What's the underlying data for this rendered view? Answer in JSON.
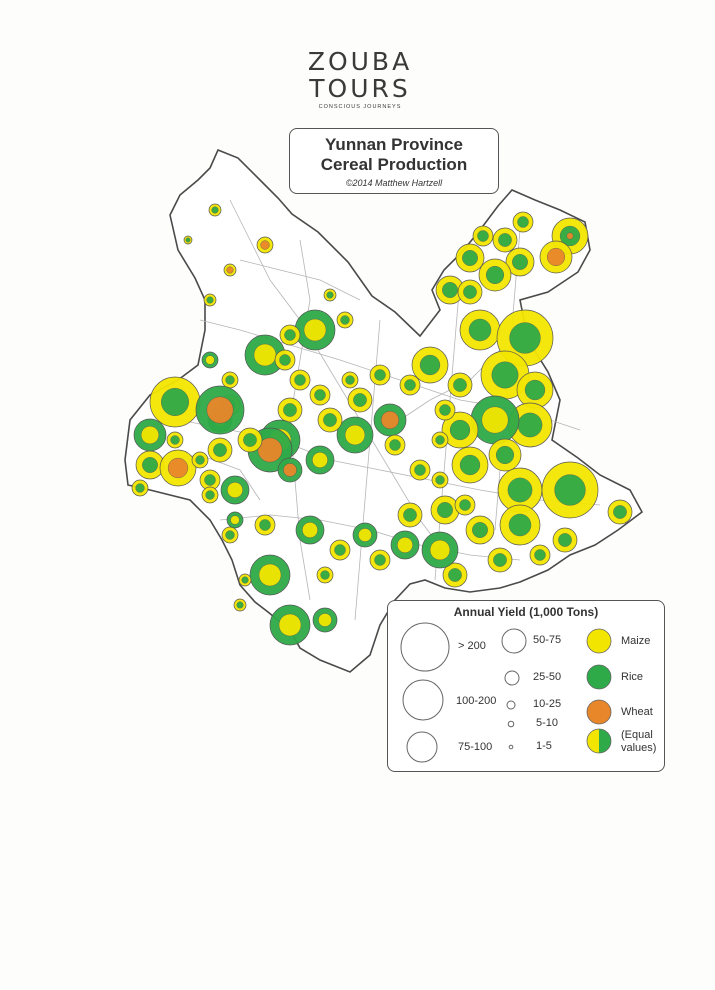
{
  "logo": {
    "line1": "ZOUBA",
    "line2": "TOURS",
    "tagline": "CONSCIOUS JOURNEYS"
  },
  "title": {
    "line1": "Yunnan Province",
    "line2": "Cereal Production",
    "credit": "©2014 Matthew Hartzell"
  },
  "colors": {
    "maize": "#f2e600",
    "rice": "#2eaa48",
    "wheat": "#e8862a",
    "outline": "#444444",
    "boundary": "#b5b5b5"
  },
  "legend": {
    "title": "Annual Yield (1,000 Tons)",
    "sizes": [
      "> 200",
      "100-200",
      "75-100",
      "50-75",
      "25-50",
      "10-25",
      "5-10",
      "1-5"
    ],
    "crops": [
      {
        "key": "maize",
        "label": "Maize"
      },
      {
        "key": "rice",
        "label": "Rice"
      },
      {
        "key": "wheat",
        "label": "Wheat"
      },
      {
        "key": "equal",
        "label": "(Equal values)"
      }
    ]
  }
}
